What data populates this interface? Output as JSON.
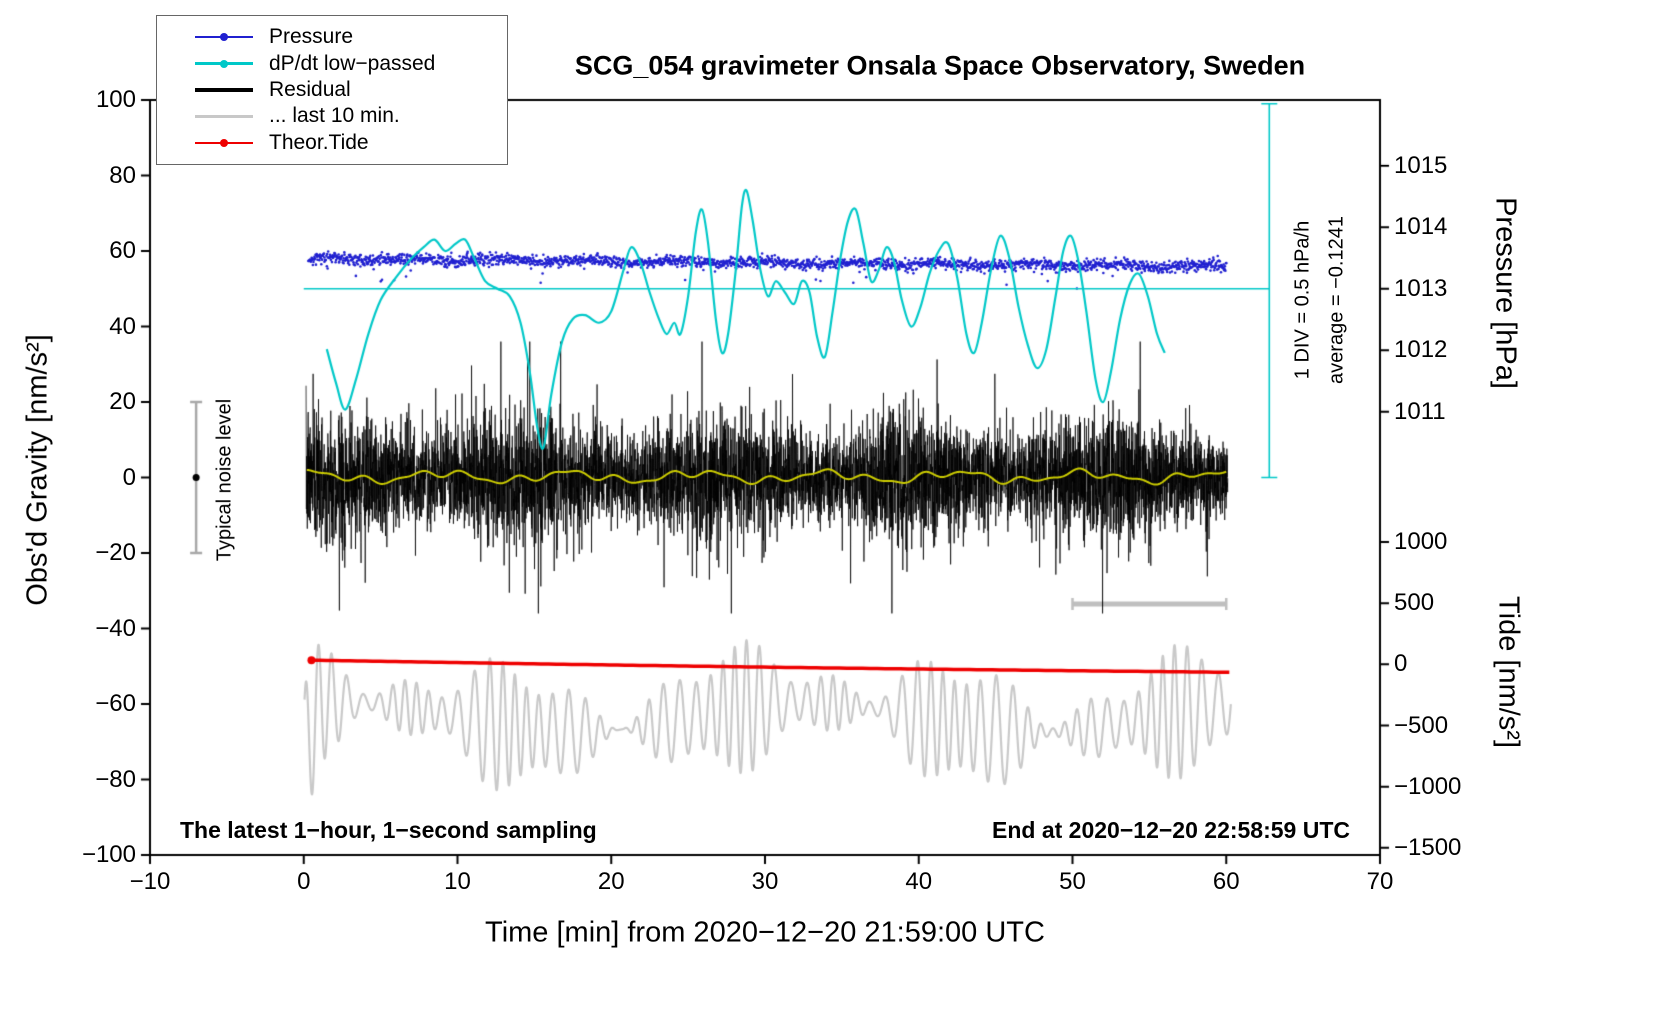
{
  "title": "SCG_054 gravimeter Onsala Space Observatory, Sweden",
  "annotations": {
    "div_note": "1 DIV = 0.5 hPa/h",
    "average_note": "average = −0.1241",
    "noise_label": "Typical noise level",
    "sampling_note": "The latest 1−hour, 1−second sampling",
    "end_note": "End at 2020−12−20 22:58:59 UTC"
  },
  "legend": {
    "position": "top-left",
    "items": [
      {
        "id": "pressure",
        "label": "Pressure",
        "color": "#2020d0",
        "symbol": "dot-line",
        "lw": 2
      },
      {
        "id": "dpdt",
        "label": "dP/dt low−passed",
        "color": "#00c8c8",
        "symbol": "dot-line",
        "lw": 2.5
      },
      {
        "id": "residual",
        "label": "Residual",
        "color": "#000000",
        "symbol": "line",
        "lw": 3.5
      },
      {
        "id": "last10",
        "label": "... last 10 min.",
        "color": "#c8c8c8",
        "symbol": "line",
        "lw": 3.5
      },
      {
        "id": "theor-tide",
        "label": "Theor.Tide",
        "color": "#ee0000",
        "symbol": "dot-line",
        "lw": 2.5
      }
    ]
  },
  "chart_data": {
    "type": "line",
    "title": "SCG_054 gravimeter Onsala Space Observatory, Sweden",
    "xlabel": "Time [min] from 2020−12−20 21:59:00 UTC",
    "ylabel_left": "Obs'd Gravity [nm/s²]",
    "ylabel_right_top": "Pressure [hPa]",
    "ylabel_right_bottom": "Tide [nm/s²]",
    "grid": false,
    "x_range": [
      -10,
      70
    ],
    "y_range": [
      -100,
      100
    ],
    "x_ticks": [
      -10,
      0,
      10,
      20,
      30,
      40,
      50,
      60,
      70
    ],
    "y_ticks": [
      -100,
      -80,
      -60,
      -40,
      -20,
      0,
      20,
      40,
      60,
      80,
      100
    ],
    "pressure_ticks": [
      1011,
      1012,
      1013,
      1014,
      1015
    ],
    "pressure_ref": {
      "hpa": 1013,
      "gravity": 50
    },
    "pressure_scale": 16.3,
    "tide_ticks": [
      -1500,
      -1000,
      -500,
      0,
      500,
      1000
    ],
    "tide_ref": {
      "tide": 0,
      "gravity": -49.5
    },
    "tide_scale_500": 16.2,
    "series": [
      {
        "name": "... last 10 min. (time-stretched residual)",
        "style": "seismo",
        "color": "#c9c9c9",
        "width": 2.2,
        "seed": 23,
        "n": 4000,
        "t_range": [
          0.05,
          60.3
        ],
        "base": -63.5,
        "slow": [
          [
            4,
            0.21,
            1.0
          ]
        ],
        "amp_base": 9,
        "amp_mod": [
          [
            5.5,
            0.43,
            2.1
          ],
          [
            3.5,
            1.13,
            0.3
          ]
        ],
        "carrier": 7.0,
        "wobble": [
          1.5,
          0.9
        ],
        "start_dip": {
          "t": 0.35,
          "w": 0.3,
          "d": 13
        }
      },
      {
        "name": "Theor.Tide",
        "style": "trend",
        "color": "#ee0000",
        "width": 3.5,
        "t_range": [
          0.5,
          60.2
        ],
        "g_start": -48.4,
        "g_end": -51.6,
        "start_dot": true,
        "tide_start_nms2": 34,
        "tide_end_nms2": -65
      },
      {
        "name": "Residual",
        "style": "noise",
        "color": "#000000",
        "width": 0.75,
        "seed": 7,
        "n": 6000,
        "t_range": [
          0.15,
          60.1
        ],
        "mean": 0,
        "sigma": 7.5,
        "clip": 36,
        "spike_prob": 0.015,
        "spike_scale": 2.4,
        "env_mod": [
          0.25,
          0.5,
          0.7
        ]
      },
      {
        "name": "Residual smoothed",
        "style": "wave",
        "color": "#cccc00",
        "width": 2,
        "t_range": [
          0.2,
          60.0
        ],
        "offset": 0.2,
        "components": [
          [
            1.1,
            0.75,
            1.2
          ],
          [
            0.7,
            1.9,
            0.4
          ],
          [
            0.5,
            3.1,
            2.0
          ]
        ]
      },
      {
        "name": "Pressure",
        "style": "dots",
        "color": "#2020d0",
        "seed": 11,
        "n": 2200,
        "t_range": [
          0.3,
          60.0
        ],
        "g_start": 57.9,
        "g_slope": -0.033,
        "sigma": 0.75,
        "band_wave": [
          0.35,
          1.1
        ],
        "outlier_prob": 0.012,
        "outlier_max": 5.0,
        "dot_r": 1.3,
        "hpa_start": 1013.48,
        "hpa_end": 1013.36
      },
      {
        "name": "dP/dt low−passed",
        "style": "spline",
        "color": "#00c8c8",
        "width": 2.2,
        "ref_line": {
          "g": 50,
          "t_min": 0,
          "t_max": 62.8,
          "hpa_equiv": 1013
        },
        "points": [
          [
            1.5,
            34
          ],
          [
            2.1,
            25
          ],
          [
            2.7,
            18
          ],
          [
            3.4,
            26
          ],
          [
            4.2,
            38
          ],
          [
            5.0,
            47
          ],
          [
            6.0,
            53
          ],
          [
            7.0,
            58
          ],
          [
            7.8,
            61
          ],
          [
            8.5,
            63
          ],
          [
            9.2,
            60
          ],
          [
            9.9,
            62
          ],
          [
            10.5,
            63
          ],
          [
            11.1,
            58
          ],
          [
            11.8,
            52
          ],
          [
            12.6,
            50
          ],
          [
            13.4,
            48
          ],
          [
            14.1,
            41
          ],
          [
            14.7,
            28
          ],
          [
            15.2,
            13
          ],
          [
            15.6,
            8
          ],
          [
            16.1,
            22
          ],
          [
            16.8,
            36
          ],
          [
            17.5,
            42
          ],
          [
            18.3,
            43
          ],
          [
            19.2,
            41
          ],
          [
            20.0,
            44
          ],
          [
            20.8,
            55
          ],
          [
            21.3,
            61
          ],
          [
            21.9,
            57
          ],
          [
            22.5,
            49
          ],
          [
            23.1,
            42
          ],
          [
            23.6,
            38
          ],
          [
            24.1,
            41
          ],
          [
            24.5,
            38
          ],
          [
            25.0,
            48
          ],
          [
            25.5,
            65
          ],
          [
            25.9,
            71
          ],
          [
            26.3,
            62
          ],
          [
            26.8,
            42
          ],
          [
            27.2,
            33
          ],
          [
            27.6,
            38
          ],
          [
            28.1,
            55
          ],
          [
            28.5,
            72
          ],
          [
            28.8,
            76
          ],
          [
            29.2,
            68
          ],
          [
            29.7,
            55
          ],
          [
            30.2,
            48
          ],
          [
            30.7,
            52
          ],
          [
            31.3,
            49
          ],
          [
            31.9,
            46
          ],
          [
            32.4,
            52
          ],
          [
            32.9,
            49
          ],
          [
            33.4,
            37
          ],
          [
            33.9,
            32
          ],
          [
            34.4,
            44
          ],
          [
            34.9,
            58
          ],
          [
            35.4,
            68
          ],
          [
            35.9,
            71
          ],
          [
            36.4,
            62
          ],
          [
            36.9,
            52
          ],
          [
            37.4,
            55
          ],
          [
            37.9,
            61
          ],
          [
            38.4,
            57
          ],
          [
            38.9,
            47
          ],
          [
            39.5,
            40
          ],
          [
            40.1,
            45
          ],
          [
            40.7,
            54
          ],
          [
            41.3,
            60
          ],
          [
            41.9,
            62
          ],
          [
            42.5,
            53
          ],
          [
            43.1,
            38
          ],
          [
            43.6,
            33
          ],
          [
            44.1,
            41
          ],
          [
            44.7,
            55
          ],
          [
            45.3,
            64
          ],
          [
            45.9,
            58
          ],
          [
            46.5,
            45
          ],
          [
            47.1,
            35
          ],
          [
            47.7,
            29
          ],
          [
            48.3,
            34
          ],
          [
            48.9,
            48
          ],
          [
            49.4,
            60
          ],
          [
            49.9,
            64
          ],
          [
            50.4,
            57
          ],
          [
            50.9,
            44
          ],
          [
            51.5,
            26
          ],
          [
            52.0,
            20
          ],
          [
            52.5,
            28
          ],
          [
            53.1,
            42
          ],
          [
            53.7,
            51
          ],
          [
            54.3,
            54
          ],
          [
            54.9,
            48
          ],
          [
            55.5,
            38
          ],
          [
            56.0,
            33
          ]
        ]
      }
    ],
    "markers": {
      "noise_bar": {
        "t": -7,
        "g_min": -20,
        "g_max": 20,
        "dot_g": 0,
        "color": "#a8a8a8",
        "label": "Typical noise level"
      },
      "last10_bar": {
        "t_min": 50,
        "t_max": 60,
        "g": -33.5,
        "color": "#bfbfbf"
      },
      "div_scale": {
        "t": 62.8,
        "g_min": 0,
        "g_max": 99,
        "color": "#00c8c8",
        "div_value": "1 DIV = 0.5 hPa/h",
        "average": -0.1241
      }
    }
  }
}
